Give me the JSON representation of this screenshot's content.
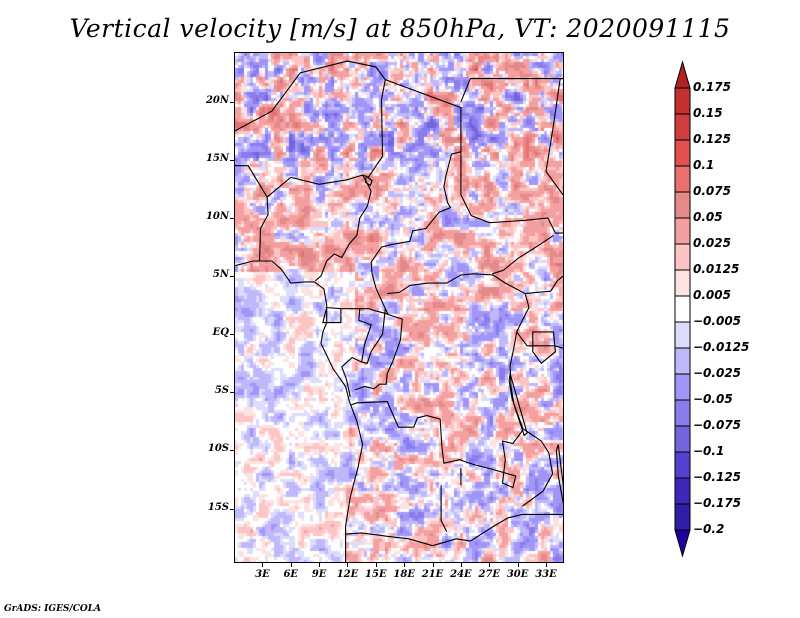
{
  "title": "Vertical velocity [m/s] at 850hPa, VT: 2020091115",
  "credit": "GrADS: IGES/COLA",
  "map": {
    "variable": "Vertical velocity",
    "units": "m/s",
    "level": "850hPa",
    "valid_time": "2020091115",
    "lon_range": [
      0.1,
      34.8
    ],
    "lat_range": [
      -19.6,
      24.2
    ],
    "lat_ticks": [
      {
        "value": 20,
        "label": "20N"
      },
      {
        "value": 15,
        "label": "15N"
      },
      {
        "value": 10,
        "label": "10N"
      },
      {
        "value": 5,
        "label": "5N"
      },
      {
        "value": 0,
        "label": "EQ"
      },
      {
        "value": -5,
        "label": "5S"
      },
      {
        "value": -10,
        "label": "10S"
      },
      {
        "value": -15,
        "label": "15S"
      }
    ],
    "lon_ticks": [
      {
        "value": 3,
        "label": "3E"
      },
      {
        "value": 6,
        "label": "6E"
      },
      {
        "value": 9,
        "label": "9E"
      },
      {
        "value": 12,
        "label": "12E"
      },
      {
        "value": 15,
        "label": "15E"
      },
      {
        "value": 18,
        "label": "18E"
      },
      {
        "value": 21,
        "label": "21E"
      },
      {
        "value": 24,
        "label": "24E"
      },
      {
        "value": 27,
        "label": "27E"
      },
      {
        "value": 30,
        "label": "30E"
      },
      {
        "value": 33,
        "label": "33E"
      }
    ]
  },
  "colorbar": {
    "labels": [
      "0.175",
      "0.15",
      "0.125",
      "0.1",
      "0.075",
      "0.05",
      "0.025",
      "0.0125",
      "0.005",
      "−0.005",
      "−0.0125",
      "−0.025",
      "−0.05",
      "−0.075",
      "−0.1",
      "−0.125",
      "−0.175",
      "−0.2"
    ],
    "levels": [
      0.175,
      0.15,
      0.125,
      0.1,
      0.075,
      0.05,
      0.025,
      0.0125,
      0.005,
      -0.005,
      -0.0125,
      -0.025,
      -0.05,
      -0.075,
      -0.1,
      -0.125,
      -0.175,
      -0.2
    ],
    "colors_top_to_bottom": [
      "#b22222",
      "#c53030",
      "#d23c3c",
      "#e25050",
      "#e87070",
      "#e48a8a",
      "#f4a0a0",
      "#fcc4c4",
      "#fde2e2",
      "#ffffff",
      "#dcdcfc",
      "#bfb8fb",
      "#a196f7",
      "#8a7ced",
      "#7465dd",
      "#5541d0",
      "#3d26b8",
      "#2f1ea6",
      "#2200a0"
    ],
    "extend": "both"
  }
}
